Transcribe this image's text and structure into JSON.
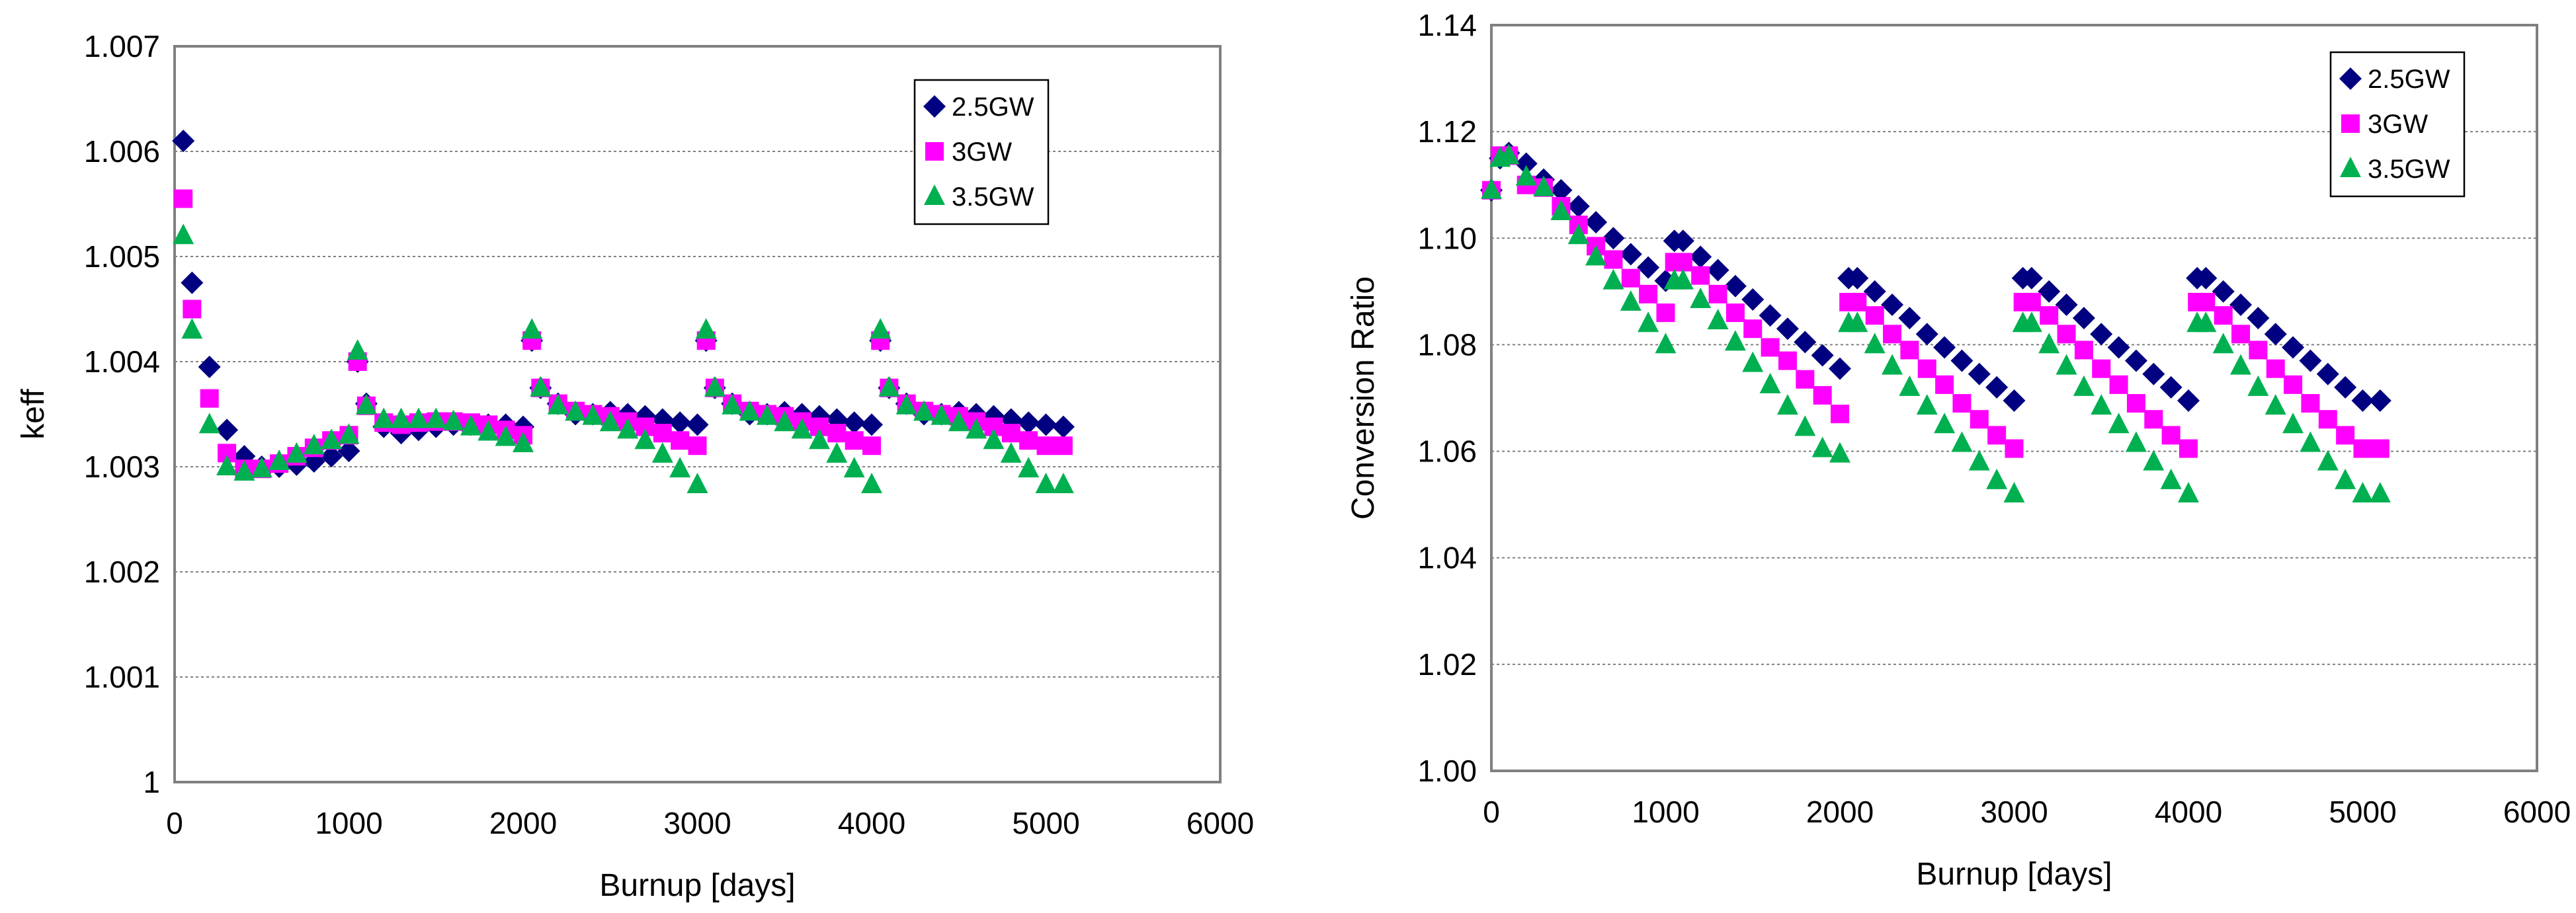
{
  "chart_data": [
    {
      "type": "scatter",
      "title": "",
      "xlabel": "Burnup [days]",
      "ylabel": "keff",
      "xlim": [
        0,
        6000
      ],
      "ylim": [
        1.0,
        1.007
      ],
      "xticks": [
        "0",
        "1000",
        "2000",
        "3000",
        "4000",
        "5000",
        "6000"
      ],
      "yticks": [
        "1",
        "1.001",
        "1.002",
        "1.003",
        "1.004",
        "1.005",
        "1.006",
        "1.007"
      ],
      "grid": "horizontal-dashed",
      "legend_position": "top-right",
      "series": [
        {
          "name": "2.5GW",
          "marker": "diamond",
          "color": "#000080",
          "x": [
            50,
            100,
            200,
            300,
            400,
            500,
            600,
            700,
            800,
            900,
            1000,
            1050,
            1100,
            1200,
            1300,
            1400,
            1500,
            1600,
            1700,
            1800,
            1900,
            2000,
            2050,
            2100,
            2200,
            2300,
            2400,
            2500,
            2600,
            2700,
            2800,
            2900,
            3000,
            3050,
            3100,
            3200,
            3300,
            3400,
            3500,
            3600,
            3700,
            3800,
            3900,
            4000,
            4050,
            4100,
            4200,
            4300,
            4400,
            4500,
            4600,
            4700,
            4800,
            4900,
            5000,
            5100
          ],
          "values": [
            1.0061,
            1.00475,
            1.00395,
            1.00335,
            1.0031,
            1.003,
            1.003,
            1.00302,
            1.00305,
            1.0031,
            1.00315,
            1.004,
            1.0036,
            1.00338,
            1.00332,
            1.00335,
            1.00338,
            1.0034,
            1.0034,
            1.0034,
            1.0034,
            1.00338,
            1.0042,
            1.00375,
            1.0036,
            1.0035,
            1.0035,
            1.00352,
            1.0035,
            1.00348,
            1.00345,
            1.00342,
            1.0034,
            1.0042,
            1.00375,
            1.0036,
            1.0035,
            1.0035,
            1.00352,
            1.0035,
            1.00348,
            1.00345,
            1.00342,
            1.0034,
            1.0042,
            1.00375,
            1.0036,
            1.0035,
            1.0035,
            1.00352,
            1.0035,
            1.00348,
            1.00345,
            1.00342,
            1.0034,
            1.00338
          ]
        },
        {
          "name": "3GW",
          "marker": "square",
          "color": "#ff00ff",
          "x": [
            50,
            100,
            200,
            300,
            400,
            500,
            600,
            700,
            800,
            900,
            1000,
            1050,
            1100,
            1200,
            1300,
            1400,
            1500,
            1600,
            1700,
            1800,
            1900,
            2000,
            2050,
            2100,
            2200,
            2300,
            2400,
            2500,
            2600,
            2700,
            2800,
            2900,
            3000,
            3050,
            3100,
            3200,
            3300,
            3400,
            3500,
            3600,
            3700,
            3800,
            3900,
            4000,
            4050,
            4100,
            4200,
            4300,
            4400,
            4500,
            4600,
            4700,
            4800,
            4900,
            5000,
            5100
          ],
          "values": [
            1.00555,
            1.0045,
            1.00365,
            1.00313,
            1.00298,
            1.00298,
            1.00303,
            1.0031,
            1.00318,
            1.00325,
            1.0033,
            1.004,
            1.00358,
            1.00342,
            1.0034,
            1.00342,
            1.00343,
            1.00343,
            1.00342,
            1.0034,
            1.00335,
            1.0033,
            1.0042,
            1.00375,
            1.0036,
            1.00353,
            1.0035,
            1.00348,
            1.00343,
            1.00338,
            1.00332,
            1.00325,
            1.0032,
            1.0042,
            1.00375,
            1.0036,
            1.00353,
            1.0035,
            1.00348,
            1.00343,
            1.00338,
            1.00332,
            1.00325,
            1.0032,
            1.0042,
            1.00375,
            1.0036,
            1.00353,
            1.0035,
            1.00348,
            1.00343,
            1.00338,
            1.00332,
            1.00325,
            1.0032,
            1.0032
          ]
        },
        {
          "name": "3.5GW",
          "marker": "triangle",
          "color": "#00b050",
          "x": [
            50,
            100,
            200,
            300,
            400,
            500,
            600,
            700,
            800,
            900,
            1000,
            1050,
            1100,
            1200,
            1300,
            1400,
            1500,
            1600,
            1700,
            1800,
            1900,
            2000,
            2050,
            2100,
            2200,
            2300,
            2400,
            2500,
            2600,
            2700,
            2800,
            2900,
            3000,
            3050,
            3100,
            3200,
            3300,
            3400,
            3500,
            3600,
            3700,
            3800,
            3900,
            4000,
            4050,
            4100,
            4200,
            4300,
            4400,
            4500,
            4600,
            4700,
            4800,
            4900,
            5000,
            5100
          ],
          "values": [
            1.0052,
            1.0043,
            1.0034,
            1.003,
            1.00295,
            1.00298,
            1.00305,
            1.00312,
            1.0032,
            1.00325,
            1.0033,
            1.0041,
            1.00358,
            1.00345,
            1.00345,
            1.00345,
            1.00345,
            1.00343,
            1.00338,
            1.00333,
            1.00328,
            1.00322,
            1.0043,
            1.00375,
            1.00358,
            1.00352,
            1.00348,
            1.00342,
            1.00335,
            1.00325,
            1.00312,
            1.00298,
            1.00283,
            1.0043,
            1.00375,
            1.00358,
            1.00352,
            1.00348,
            1.00342,
            1.00335,
            1.00325,
            1.00312,
            1.00298,
            1.00283,
            1.0043,
            1.00375,
            1.00358,
            1.00352,
            1.00348,
            1.00342,
            1.00335,
            1.00325,
            1.00312,
            1.00298,
            1.00283,
            1.00283
          ]
        }
      ]
    },
    {
      "type": "scatter",
      "title": "",
      "xlabel": "Burnup [days]",
      "ylabel": "Conversion Ratio",
      "xlim": [
        0,
        6000
      ],
      "ylim": [
        1.0,
        1.14
      ],
      "xticks": [
        "0",
        "1000",
        "2000",
        "3000",
        "4000",
        "5000",
        "6000"
      ],
      "yticks": [
        "1.00",
        "1.02",
        "1.04",
        "1.06",
        "1.08",
        "1.10",
        "1.12",
        "1.14"
      ],
      "grid": "horizontal-dashed",
      "legend_position": "top-right",
      "series": [
        {
          "name": "2.5GW",
          "marker": "diamond",
          "color": "#000080",
          "x": [
            0,
            50,
            100,
            200,
            300,
            400,
            500,
            600,
            700,
            800,
            900,
            1000,
            1050,
            1100,
            1200,
            1300,
            1400,
            1500,
            1600,
            1700,
            1800,
            1900,
            2000,
            2050,
            2100,
            2200,
            2300,
            2400,
            2500,
            2600,
            2700,
            2800,
            2900,
            3000,
            3050,
            3100,
            3200,
            3300,
            3400,
            3500,
            3600,
            3700,
            3800,
            3900,
            4000,
            4050,
            4100,
            4200,
            4300,
            4400,
            4500,
            4600,
            4700,
            4800,
            4900,
            5000,
            5100
          ],
          "values": [
            1.109,
            1.115,
            1.116,
            1.114,
            1.111,
            1.109,
            1.106,
            1.103,
            1.1,
            1.097,
            1.0945,
            1.092,
            1.0995,
            1.0995,
            1.0965,
            1.094,
            1.091,
            1.0885,
            1.0855,
            1.083,
            1.0805,
            1.078,
            1.0755,
            1.0925,
            1.0925,
            1.09,
            1.0875,
            1.085,
            1.082,
            1.0795,
            1.077,
            1.0745,
            1.072,
            1.0695,
            1.0925,
            1.0925,
            1.09,
            1.0875,
            1.085,
            1.082,
            1.0795,
            1.077,
            1.0745,
            1.072,
            1.0695,
            1.0925,
            1.0925,
            1.09,
            1.0875,
            1.085,
            1.082,
            1.0795,
            1.077,
            1.0745,
            1.072,
            1.0695,
            1.0695
          ]
        },
        {
          "name": "3GW",
          "marker": "square",
          "color": "#ff00ff",
          "x": [
            0,
            50,
            100,
            200,
            300,
            400,
            500,
            600,
            700,
            800,
            900,
            1000,
            1050,
            1100,
            1200,
            1300,
            1400,
            1500,
            1600,
            1700,
            1800,
            1900,
            2000,
            2050,
            2100,
            2200,
            2300,
            2400,
            2500,
            2600,
            2700,
            2800,
            2900,
            3000,
            3050,
            3100,
            3200,
            3300,
            3400,
            3500,
            3600,
            3700,
            3800,
            3900,
            4000,
            4050,
            4100,
            4200,
            4300,
            4400,
            4500,
            4600,
            4700,
            4800,
            4900,
            5000,
            5100
          ],
          "values": [
            1.109,
            1.1155,
            1.1155,
            1.11,
            1.1095,
            1.106,
            1.1025,
            1.0985,
            1.096,
            1.0925,
            1.0895,
            1.086,
            1.0955,
            1.0955,
            1.093,
            1.0895,
            1.086,
            1.083,
            1.0795,
            1.077,
            1.0735,
            1.0705,
            1.067,
            1.088,
            1.088,
            1.0855,
            1.082,
            1.079,
            1.0755,
            1.0725,
            1.069,
            1.066,
            1.063,
            1.0605,
            1.088,
            1.088,
            1.0855,
            1.082,
            1.079,
            1.0755,
            1.0725,
            1.069,
            1.066,
            1.063,
            1.0605,
            1.088,
            1.088,
            1.0855,
            1.082,
            1.079,
            1.0755,
            1.0725,
            1.069,
            1.066,
            1.063,
            1.0605,
            1.0605
          ]
        },
        {
          "name": "3.5GW",
          "marker": "triangle",
          "color": "#00b050",
          "x": [
            0,
            50,
            100,
            200,
            300,
            400,
            500,
            600,
            700,
            800,
            900,
            1000,
            1050,
            1100,
            1200,
            1300,
            1400,
            1500,
            1600,
            1700,
            1800,
            1900,
            2000,
            2050,
            2100,
            2200,
            2300,
            2400,
            2500,
            2600,
            2700,
            2800,
            2900,
            3000,
            3050,
            3100,
            3200,
            3300,
            3400,
            3500,
            3600,
            3700,
            3800,
            3900,
            4000,
            4050,
            4100,
            4200,
            4300,
            4400,
            4500,
            4600,
            4700,
            4800,
            4900,
            5000,
            5100
          ],
          "values": [
            1.109,
            1.115,
            1.1155,
            1.1115,
            1.1095,
            1.105,
            1.1005,
            1.0965,
            1.092,
            1.088,
            1.084,
            1.08,
            1.092,
            1.092,
            1.0885,
            1.0845,
            1.0805,
            1.0765,
            1.0725,
            1.0685,
            1.0645,
            1.0605,
            1.0595,
            1.084,
            1.084,
            1.08,
            1.076,
            1.072,
            1.0685,
            1.065,
            1.0615,
            1.058,
            1.0545,
            1.052,
            1.084,
            1.084,
            1.08,
            1.076,
            1.072,
            1.0685,
            1.065,
            1.0615,
            1.058,
            1.0545,
            1.052,
            1.084,
            1.084,
            1.08,
            1.076,
            1.072,
            1.0685,
            1.065,
            1.0615,
            1.058,
            1.0545,
            1.052,
            1.052
          ]
        }
      ]
    }
  ]
}
